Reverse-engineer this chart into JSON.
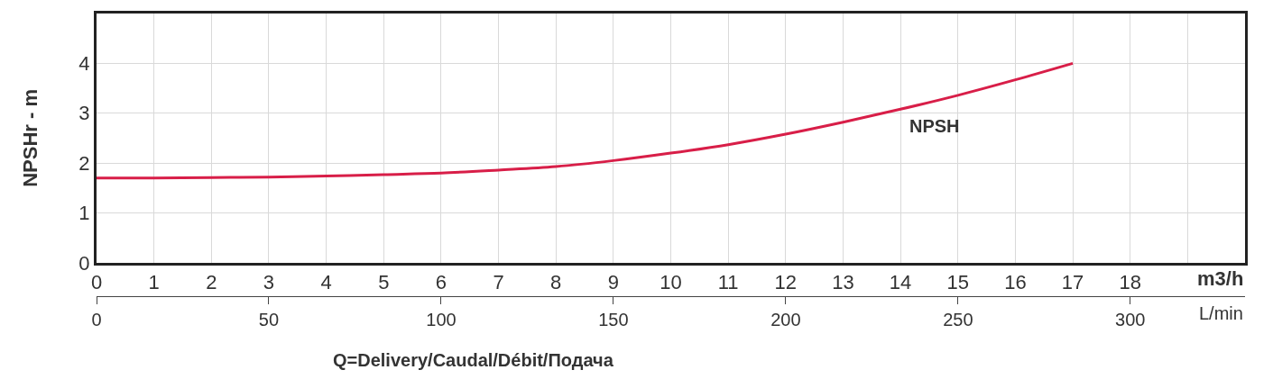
{
  "chart_data": {
    "type": "line",
    "xlabel": "Q=Delivery/Caudal/Débit/Подача",
    "ylabel": "NPSHr - m",
    "x2label": "L/min",
    "annotations": [
      "m3/h"
    ],
    "x": [
      0,
      1,
      2,
      3,
      4,
      5,
      6,
      7,
      8,
      9,
      10,
      11,
      12,
      13,
      14,
      15,
      16,
      17
    ],
    "series": [
      {
        "name": "NPSH",
        "color": "#d81e48",
        "values": [
          1.7,
          1.7,
          1.71,
          1.72,
          1.74,
          1.77,
          1.8,
          1.86,
          1.93,
          2.05,
          2.2,
          2.37,
          2.58,
          2.82,
          3.08,
          3.36,
          3.67,
          4.0
        ]
      }
    ],
    "xlim": [
      0,
      20
    ],
    "xticks": [
      0,
      1,
      2,
      3,
      4,
      5,
      6,
      7,
      8,
      9,
      10,
      11,
      12,
      13,
      14,
      15,
      16,
      17,
      18,
      {
        "value": 19,
        "label": null
      }
    ],
    "x2lim": [
      0,
      333.3
    ],
    "x2ticks": [
      0,
      50,
      100,
      150,
      200,
      250,
      300
    ],
    "ylim": [
      0,
      5
    ],
    "yticks": [
      0,
      1,
      2,
      3,
      4
    ],
    "grid": true,
    "legend": false,
    "marker": "none",
    "line_style": "solid"
  }
}
